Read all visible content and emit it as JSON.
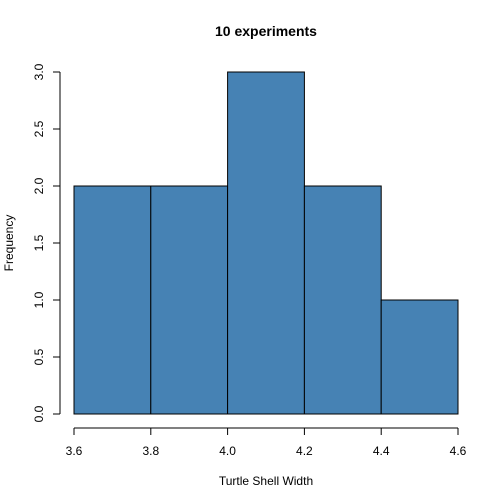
{
  "chart_data": {
    "type": "bar",
    "title": "10 experiments",
    "xlabel": "Turtle Shell Width",
    "ylabel": "Frequency",
    "bins": [
      {
        "start": 3.6,
        "end": 3.8,
        "count": 2
      },
      {
        "start": 3.8,
        "end": 4.0,
        "count": 2
      },
      {
        "start": 4.0,
        "end": 4.2,
        "count": 3
      },
      {
        "start": 4.2,
        "end": 4.4,
        "count": 2
      },
      {
        "start": 4.4,
        "end": 4.6,
        "count": 1
      }
    ],
    "xlim": [
      3.6,
      4.6
    ],
    "ylim": [
      0,
      3
    ],
    "x_ticks": [
      "3.6",
      "3.8",
      "4.0",
      "4.2",
      "4.4",
      "4.6"
    ],
    "y_ticks": [
      "0.0",
      "0.5",
      "1.0",
      "1.5",
      "2.0",
      "2.5",
      "3.0"
    ],
    "bar_color": "#4682B4",
    "grid": false
  }
}
